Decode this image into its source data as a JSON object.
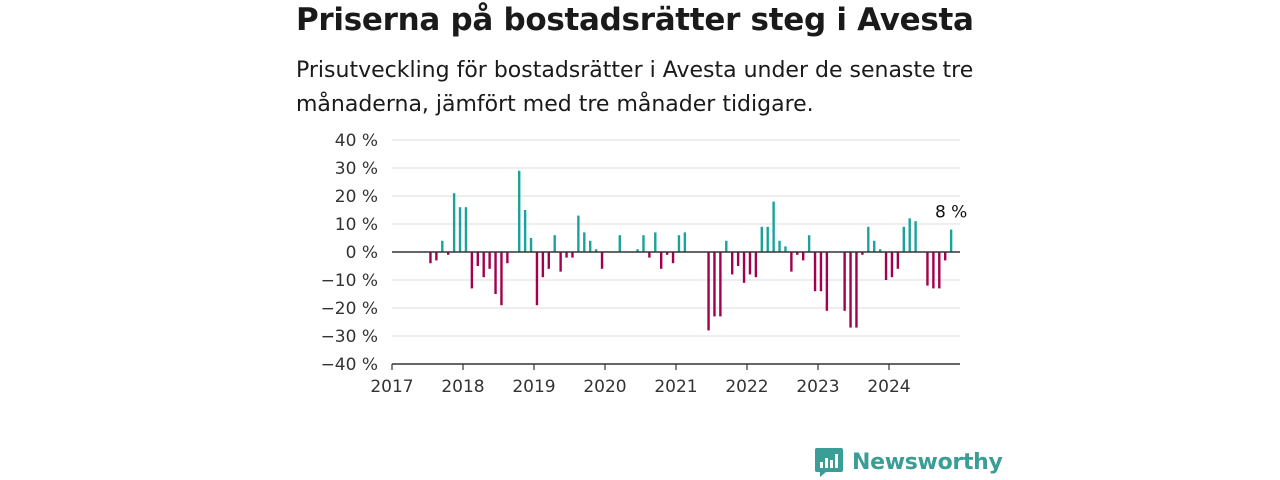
{
  "title": "Priserna på bostadsrätter steg i Avesta",
  "subtitle": "Prisutveckling för bostadsrätter i Avesta under de senaste tre månaderna, jämfört med tre månader tidigare.",
  "brand": "Newsworthy",
  "colors": {
    "positive": "#1ba29a",
    "negative": "#a3004e",
    "grid": "#dddddd",
    "axis": "#333333",
    "brand": "#3a9e97"
  },
  "chart_data": {
    "type": "bar",
    "unit": "%",
    "ylim": [
      -40,
      40
    ],
    "yticks": [
      40,
      30,
      20,
      10,
      0,
      -10,
      -20,
      -30,
      -40
    ],
    "ytick_labels": [
      "40 %",
      "30 %",
      "20 %",
      "10 %",
      "0 %",
      "−10 %",
      "−20 %",
      "−30 %",
      "−40 %"
    ],
    "xlim": [
      2017.0,
      2025.0
    ],
    "xticks": [
      "2017",
      "2018",
      "2019",
      "2020",
      "2021",
      "2022",
      "2023",
      "2024"
    ],
    "grid": true,
    "last_value_label": "8 %",
    "x_start": "2017-07",
    "series": [
      {
        "x": "2017-07",
        "value": -4
      },
      {
        "x": "2017-08",
        "value": -3
      },
      {
        "x": "2017-09",
        "value": 4
      },
      {
        "x": "2017-10",
        "value": -1
      },
      {
        "x": "2017-11",
        "value": 21
      },
      {
        "x": "2017-12",
        "value": 16
      },
      {
        "x": "2018-01",
        "value": 16
      },
      {
        "x": "2018-02",
        "value": -13
      },
      {
        "x": "2018-03",
        "value": -5
      },
      {
        "x": "2018-04",
        "value": -9
      },
      {
        "x": "2018-05",
        "value": -6
      },
      {
        "x": "2018-06",
        "value": -15
      },
      {
        "x": "2018-07",
        "value": -19
      },
      {
        "x": "2018-08",
        "value": -4
      },
      {
        "x": "2018-10",
        "value": 29
      },
      {
        "x": "2018-11",
        "value": 15
      },
      {
        "x": "2018-12",
        "value": 5
      },
      {
        "x": "2019-01",
        "value": -19
      },
      {
        "x": "2019-02",
        "value": -9
      },
      {
        "x": "2019-03",
        "value": -6
      },
      {
        "x": "2019-04",
        "value": 6
      },
      {
        "x": "2019-05",
        "value": -7
      },
      {
        "x": "2019-06",
        "value": -2
      },
      {
        "x": "2019-07",
        "value": -2
      },
      {
        "x": "2019-08",
        "value": 13
      },
      {
        "x": "2019-09",
        "value": 7
      },
      {
        "x": "2019-10",
        "value": 4
      },
      {
        "x": "2019-11",
        "value": 1
      },
      {
        "x": "2019-12",
        "value": -6
      },
      {
        "x": "2020-03",
        "value": 6
      },
      {
        "x": "2020-06",
        "value": 1
      },
      {
        "x": "2020-07",
        "value": 6
      },
      {
        "x": "2020-08",
        "value": -2
      },
      {
        "x": "2020-09",
        "value": 7
      },
      {
        "x": "2020-10",
        "value": -6
      },
      {
        "x": "2020-11",
        "value": -1
      },
      {
        "x": "2020-12",
        "value": -4
      },
      {
        "x": "2021-01",
        "value": 6
      },
      {
        "x": "2021-02",
        "value": 7
      },
      {
        "x": "2021-06",
        "value": -28
      },
      {
        "x": "2021-07",
        "value": -23
      },
      {
        "x": "2021-08",
        "value": -23
      },
      {
        "x": "2021-09",
        "value": 4
      },
      {
        "x": "2021-10",
        "value": -8
      },
      {
        "x": "2021-11",
        "value": -5
      },
      {
        "x": "2021-12",
        "value": -11
      },
      {
        "x": "2022-01",
        "value": -8
      },
      {
        "x": "2022-02",
        "value": -9
      },
      {
        "x": "2022-03",
        "value": 9
      },
      {
        "x": "2022-04",
        "value": 9
      },
      {
        "x": "2022-05",
        "value": 18
      },
      {
        "x": "2022-06",
        "value": 4
      },
      {
        "x": "2022-07",
        "value": 2
      },
      {
        "x": "2022-08",
        "value": -7
      },
      {
        "x": "2022-09",
        "value": -1
      },
      {
        "x": "2022-10",
        "value": -3
      },
      {
        "x": "2022-11",
        "value": 6
      },
      {
        "x": "2022-12",
        "value": -14
      },
      {
        "x": "2023-01",
        "value": -14
      },
      {
        "x": "2023-02",
        "value": -21
      },
      {
        "x": "2023-05",
        "value": -21
      },
      {
        "x": "2023-06",
        "value": -27
      },
      {
        "x": "2023-07",
        "value": -27
      },
      {
        "x": "2023-08",
        "value": -1
      },
      {
        "x": "2023-09",
        "value": 9
      },
      {
        "x": "2023-10",
        "value": 4
      },
      {
        "x": "2023-11",
        "value": 1
      },
      {
        "x": "2023-12",
        "value": -10
      },
      {
        "x": "2024-01",
        "value": -9
      },
      {
        "x": "2024-02",
        "value": -6
      },
      {
        "x": "2024-03",
        "value": 9
      },
      {
        "x": "2024-04",
        "value": 12
      },
      {
        "x": "2024-05",
        "value": 11
      },
      {
        "x": "2024-07",
        "value": -12
      },
      {
        "x": "2024-08",
        "value": -13
      },
      {
        "x": "2024-09",
        "value": -13
      },
      {
        "x": "2024-10",
        "value": -3
      },
      {
        "x": "2024-11",
        "value": 8
      }
    ]
  }
}
